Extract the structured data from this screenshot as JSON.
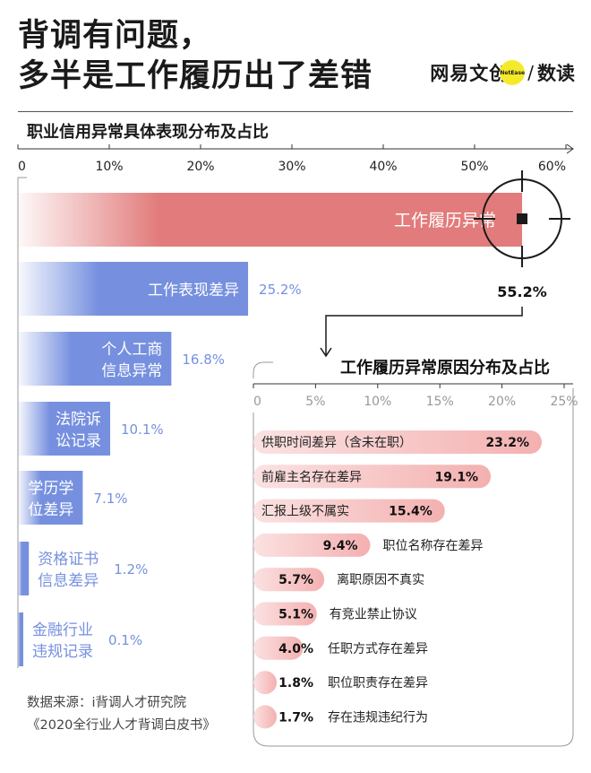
{
  "headline": {
    "line1": "背调有问题，",
    "line2": "多半是工作履历出了差错"
  },
  "brand": {
    "name": "网易文创",
    "badge": "NetEase",
    "slash": "/",
    "section": "数读"
  },
  "subtitle": "职业信用异常具体表现分布及占比",
  "colors": {
    "red": "#e27b7b",
    "blue": "#7690df",
    "pink": "#f4b8b8",
    "pink_dark": "#e88e8e",
    "dark": "#1a1a1a"
  },
  "chart_data": [
    {
      "type": "bar",
      "orientation": "horizontal",
      "title": "职业信用异常具体表现分布及占比",
      "xlim": [
        0,
        60
      ],
      "xticks": [
        "0",
        "10%",
        "20%",
        "30%",
        "40%",
        "50%",
        "60%"
      ],
      "xtick_values": [
        0,
        10,
        20,
        30,
        40,
        50,
        60
      ],
      "series": [
        {
          "name": "工作履历异常",
          "value": 55.2,
          "value_label": "55.2%",
          "lines": [
            "工作履历异常"
          ],
          "highlight": true
        },
        {
          "name": "工作表现差异",
          "value": 25.2,
          "value_label": "25.2%",
          "lines": [
            "工作表现差异"
          ]
        },
        {
          "name": "个人工商信息异常",
          "value": 16.8,
          "value_label": "16.8%",
          "lines": [
            "个人工商",
            "信息异常"
          ]
        },
        {
          "name": "法院诉讼记录",
          "value": 10.1,
          "value_label": "10.1%",
          "lines": [
            "法院诉",
            "讼记录"
          ]
        },
        {
          "name": "学历学位差异",
          "value": 7.1,
          "value_label": "7.1%",
          "lines": [
            "学历学",
            "位差异"
          ]
        },
        {
          "name": "资格证书信息差异",
          "value": 1.2,
          "value_label": "1.2%",
          "lines": [
            "资格证书",
            "信息差异"
          ]
        },
        {
          "name": "金融行业违规记录",
          "value": 0.1,
          "value_label": "0.1%",
          "lines": [
            "金融行业",
            "违规记录"
          ]
        }
      ]
    },
    {
      "type": "bar",
      "orientation": "horizontal",
      "title": "工作履历异常原因分布及占比",
      "xlim": [
        0,
        25
      ],
      "xticks": [
        "0",
        "5%",
        "10%",
        "15%",
        "20%",
        "25%"
      ],
      "xtick_values": [
        0,
        5,
        10,
        15,
        20,
        25
      ],
      "series": [
        {
          "name": "供职时间差异（含未在职）",
          "value": 23.2,
          "value_label": "23.2%"
        },
        {
          "name": "前雇主名存在差异",
          "value": 19.1,
          "value_label": "19.1%"
        },
        {
          "name": "汇报上级不属实",
          "value": 15.4,
          "value_label": "15.4%"
        },
        {
          "name": "职位名称存在差异",
          "value": 9.4,
          "value_label": "9.4%"
        },
        {
          "name": "离职原因不真实",
          "value": 5.7,
          "value_label": "5.7%"
        },
        {
          "name": "有竞业禁止协议",
          "value": 5.1,
          "value_label": "5.1%"
        },
        {
          "name": "任职方式存在差异",
          "value": 4.0,
          "value_label": "4.0%"
        },
        {
          "name": "职位职责存在差异",
          "value": 1.8,
          "value_label": "1.8%"
        },
        {
          "name": "存在违规违纪行为",
          "value": 1.7,
          "value_label": "1.7%"
        }
      ]
    }
  ],
  "source": {
    "line1": "数据来源：i背调人才研究院",
    "line2": "《2020全行业人才背调白皮书》"
  }
}
